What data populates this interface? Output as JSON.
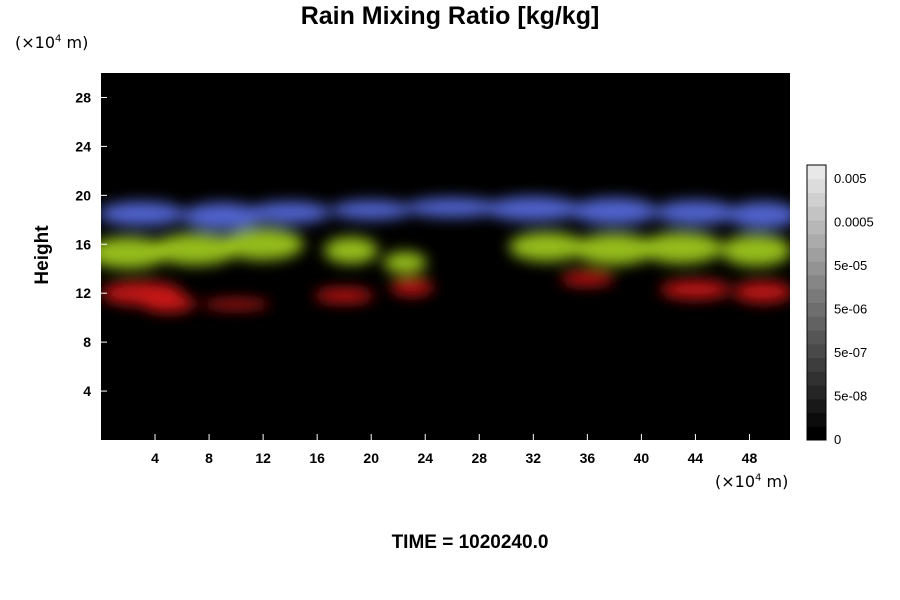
{
  "chart_data": {
    "type": "heatmap",
    "title": "Rain Mixing Ratio [kg/kg]",
    "ylabel": "Height",
    "x_unit": {
      "prefix": "(×10",
      "exp": "4",
      "suffix": " m)"
    },
    "y_unit": {
      "prefix": "(×10",
      "exp": "4",
      "suffix": " m)"
    },
    "xlim": [
      0,
      51
    ],
    "ylim": [
      0,
      30
    ],
    "x_ticks": [
      4,
      8,
      12,
      16,
      20,
      24,
      28,
      32,
      36,
      40,
      44,
      48
    ],
    "y_ticks": [
      4,
      8,
      12,
      16,
      20,
      24,
      28
    ],
    "background_color": "#000000",
    "colorbar": {
      "labels": [
        "0.005",
        "0.0005",
        "5e-05",
        "5e-06",
        "5e-07",
        "5e-08",
        "0"
      ]
    },
    "layers": [
      {
        "name": "blue",
        "color": "#5a6ee6",
        "blobs": [
          [
            3,
            18.5,
            3.2,
            1.0
          ],
          [
            9,
            18.3,
            3.0,
            1.1
          ],
          [
            14,
            18.6,
            3.0,
            0.9
          ],
          [
            20,
            18.8,
            3.0,
            0.8
          ],
          [
            26,
            19.0,
            3.5,
            0.8
          ],
          [
            32,
            18.9,
            3.5,
            1.0
          ],
          [
            38,
            18.7,
            3.2,
            1.1
          ],
          [
            44,
            18.6,
            3.0,
            1.0
          ],
          [
            49,
            18.4,
            2.6,
            1.1
          ]
        ]
      },
      {
        "name": "yellow-green",
        "color": "#a5d21e",
        "blobs": [
          [
            2,
            15.3,
            3.0,
            1.3
          ],
          [
            7,
            15.6,
            3.2,
            1.3
          ],
          [
            12,
            16.0,
            3.0,
            1.3
          ],
          [
            18.5,
            15.5,
            2.0,
            1.1
          ],
          [
            22.5,
            14.5,
            1.6,
            0.9
          ],
          [
            33,
            15.8,
            2.8,
            1.2
          ],
          [
            38,
            15.6,
            3.0,
            1.3
          ],
          [
            43,
            15.7,
            3.0,
            1.3
          ],
          [
            48.5,
            15.5,
            2.6,
            1.3
          ]
        ]
      },
      {
        "name": "red",
        "color": "#d21414",
        "blobs": [
          [
            3,
            12.0,
            3.0,
            1.0
          ],
          [
            5,
            11.2,
            2.0,
            0.8
          ],
          [
            10,
            11.1,
            2.5,
            0.4
          ],
          [
            18,
            11.8,
            2.2,
            0.6
          ],
          [
            23,
            12.5,
            1.6,
            0.7
          ],
          [
            36,
            13.2,
            2.0,
            0.6
          ],
          [
            44,
            12.3,
            2.6,
            0.8
          ],
          [
            49,
            12.1,
            2.2,
            0.9
          ]
        ]
      }
    ]
  },
  "time_label": "TIME = 1020240.0"
}
